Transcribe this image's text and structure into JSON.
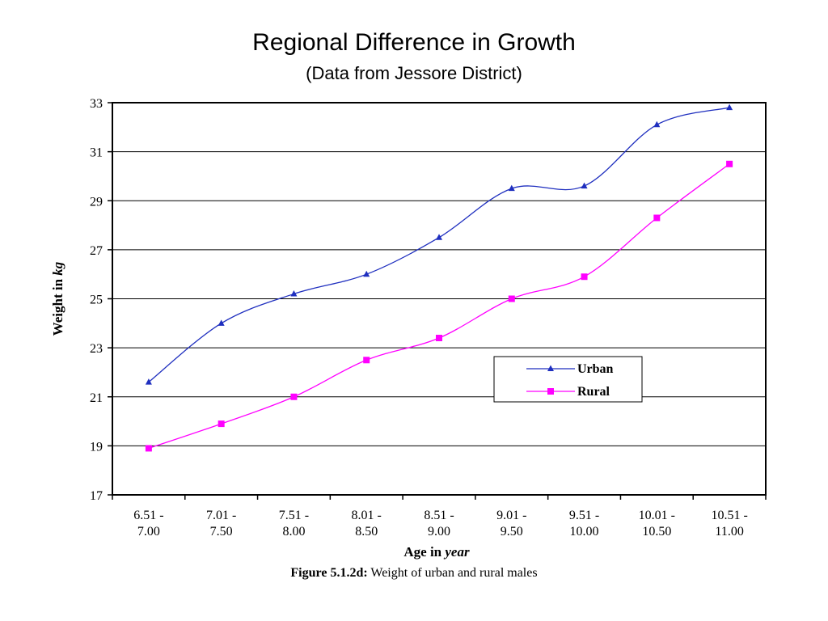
{
  "title": "Regional Difference in Growth",
  "subtitle": "(Data from Jessore District)",
  "caption": {
    "label": "Figure 5.1.2d:",
    "text": " Weight of urban and rural males"
  },
  "chart_data": {
    "type": "line",
    "xlabel_prefix": "Age in ",
    "xlabel_unit": "year",
    "ylabel_prefix": "Weight in ",
    "ylabel_unit": "kg",
    "categories": [
      [
        "6.51 -",
        "7.00"
      ],
      [
        "7.01 -",
        "7.50"
      ],
      [
        "7.51 -",
        "8.00"
      ],
      [
        "8.01 -",
        "8.50"
      ],
      [
        "8.51 -",
        "9.00"
      ],
      [
        "9.01 -",
        "9.50"
      ],
      [
        "9.51 -",
        "10.00"
      ],
      [
        "10.01 -",
        "10.50"
      ],
      [
        "10.51 -",
        "11.00"
      ]
    ],
    "ylim": [
      17,
      33
    ],
    "yticks": [
      17,
      19,
      21,
      23,
      25,
      27,
      29,
      31,
      33
    ],
    "grid": true,
    "legend_position": "right-middle",
    "series": [
      {
        "name": "Urban",
        "color": "#1f2fbf",
        "marker": "triangle",
        "values": [
          21.6,
          24.0,
          25.2,
          26.0,
          27.5,
          29.5,
          29.6,
          32.1,
          32.8
        ]
      },
      {
        "name": "Rural",
        "color": "#ff00ff",
        "marker": "square",
        "values": [
          18.9,
          19.9,
          21.0,
          22.5,
          23.4,
          25.0,
          25.9,
          28.3,
          30.5
        ]
      }
    ]
  }
}
